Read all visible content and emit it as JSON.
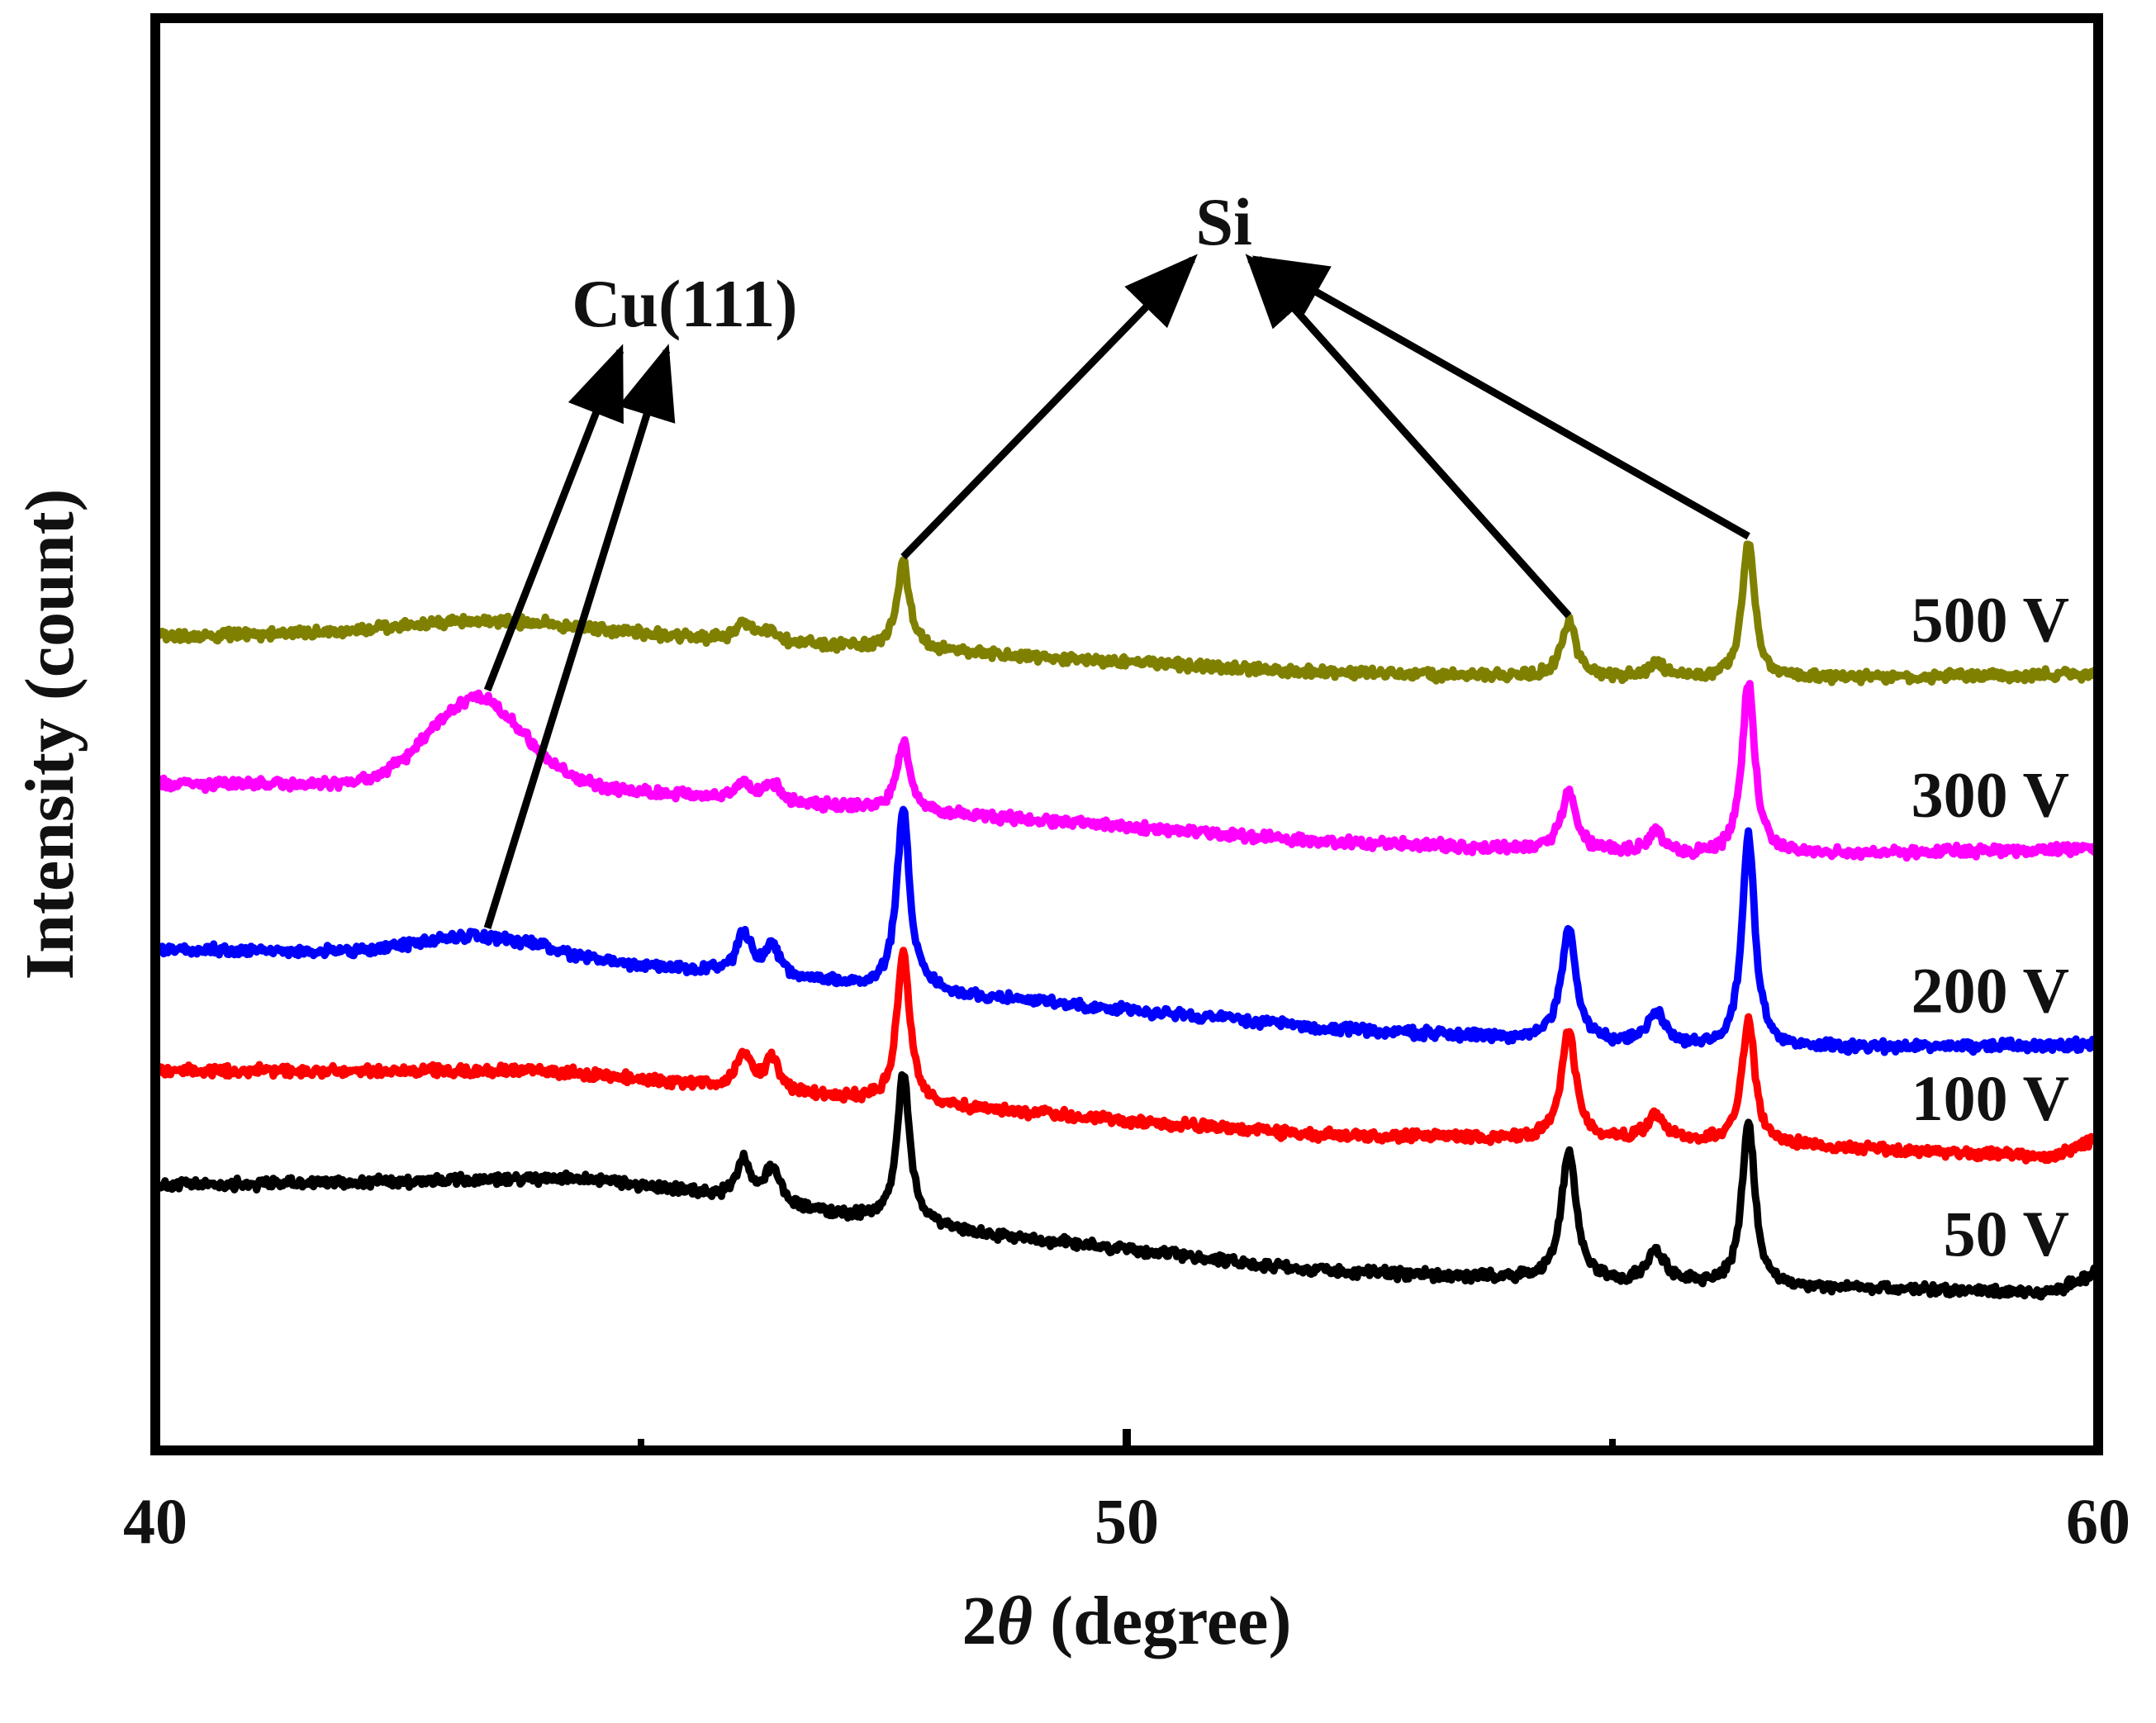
{
  "chart_data": {
    "type": "line",
    "title": "",
    "xlabel_prefix": "2",
    "xlabel_symbol": "θ",
    "xlabel_suffix": " (degree)",
    "ylabel": "Intensity (count)",
    "xlim": [
      40,
      60
    ],
    "ylim": [
      0,
      100
    ],
    "xticks": [
      40,
      50,
      60
    ],
    "minor_xticks": [
      45,
      55
    ],
    "yticks_shown": false,
    "grid": false,
    "peaks": [
      {
        "x": 46.06,
        "w": 0.09
      },
      {
        "x": 46.35,
        "w": 0.09
      },
      {
        "x": 47.7,
        "w": 0.08
      },
      {
        "x": 54.55,
        "w": 0.09
      },
      {
        "x": 55.45,
        "w": 0.11
      },
      {
        "x": 56.4,
        "w": 0.08
      }
    ],
    "series": [
      {
        "name": "50 V",
        "color": "#000000",
        "baseline": [
          [
            40,
            18.5
          ],
          [
            44.5,
            19
          ],
          [
            48,
            15.5
          ],
          [
            52,
            12.5
          ],
          [
            56,
            11.5
          ],
          [
            59.5,
            11
          ],
          [
            60,
            12.5
          ]
        ],
        "peak_heights": [
          2.8,
          2.5,
          10.5,
          9,
          2.2,
          11.5
        ],
        "humps": []
      },
      {
        "name": "100 V",
        "color": "#ff0000",
        "baseline": [
          [
            40,
            26.5
          ],
          [
            44,
            26.5
          ],
          [
            48,
            24
          ],
          [
            52,
            22
          ],
          [
            56,
            21.5
          ],
          [
            59.5,
            20.5
          ],
          [
            60,
            21.8
          ]
        ],
        "peak_heights": [
          2.5,
          2.2,
          10.5,
          7.5,
          1.8,
          8.8
        ],
        "humps": []
      },
      {
        "name": "200 V",
        "color": "#0000ff",
        "baseline": [
          [
            40,
            35
          ],
          [
            44,
            34.5
          ],
          [
            48,
            32
          ],
          [
            52,
            29.5
          ],
          [
            56,
            28
          ],
          [
            60,
            28.3
          ]
        ],
        "peak_heights": [
          2.8,
          2.2,
          12.5,
          8,
          2.3,
          15
        ],
        "humps": [
          {
            "x": 43.3,
            "w": 0.6,
            "h": 1.3
          }
        ]
      },
      {
        "name": "300 V",
        "color": "#ff00ff",
        "baseline": [
          [
            40,
            46.5
          ],
          [
            44,
            46.5
          ],
          [
            48,
            44.5
          ],
          [
            52,
            42.5
          ],
          [
            56,
            41.5
          ],
          [
            60,
            42
          ]
        ],
        "peak_heights": [
          1.2,
          1.2,
          4.8,
          4.2,
          1.4,
          12
        ],
        "humps": [
          {
            "x": 43.3,
            "w": 0.48,
            "h": 6
          }
        ]
      },
      {
        "name": "500 V",
        "color": "#808000",
        "baseline": [
          [
            40,
            56.8
          ],
          [
            44,
            57.3
          ],
          [
            48,
            55.8
          ],
          [
            52,
            54.3
          ],
          [
            56,
            53.8
          ],
          [
            60,
            54.2
          ]
        ],
        "peak_heights": [
          1.3,
          0.8,
          6,
          3.8,
          1,
          9.5
        ],
        "humps": [
          {
            "x": 43.3,
            "w": 0.9,
            "h": 0.6
          }
        ]
      }
    ],
    "annotations": [
      {
        "text": "Si",
        "targets": [
          "47.7",
          "54.55",
          "56.4"
        ]
      },
      {
        "text": "Cu(111)",
        "targets": [
          "300 V",
          "200 V"
        ]
      }
    ]
  }
}
